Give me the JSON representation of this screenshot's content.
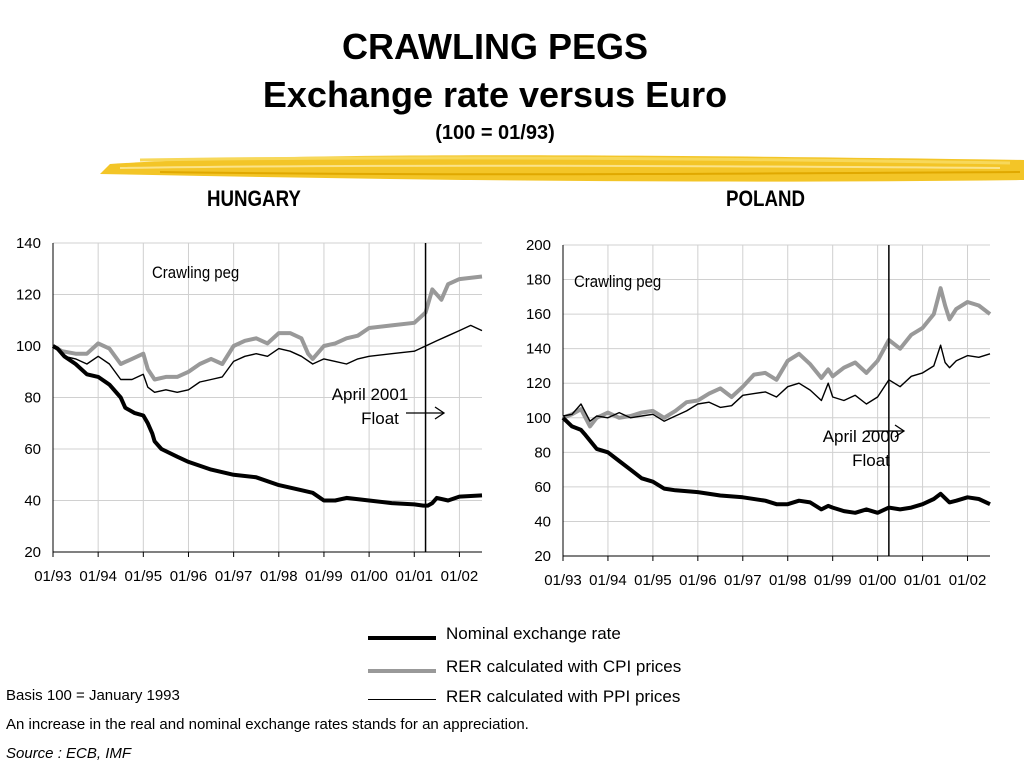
{
  "slide": {
    "title_line1": "CRAWLING PEGS",
    "title_line2": "Exchange rate versus Euro",
    "title_line3": "(100 = 01/93)",
    "basis_note": "Basis 100 = January 1993",
    "increase_note": "An increase in the real and nominal exchange rates stands for an appreciation.",
    "source_note": "Source : ECB, IMF",
    "accent_color": "#f2c21b"
  },
  "legend": [
    {
      "label": "Nominal exchange rate",
      "color": "#000000",
      "style": "thick black"
    },
    {
      "label": "RER calculated with CPI prices",
      "color": "#999999",
      "style": "thick gray"
    },
    {
      "label": "RER calculated with PPI prices",
      "color": "#000000",
      "style": "thin black"
    }
  ],
  "chart_data": [
    {
      "type": "line",
      "title": "HUNGARY",
      "x_tick_labels": [
        "01/93",
        "01/94",
        "01/95",
        "01/96",
        "01/97",
        "01/98",
        "01/99",
        "01/00",
        "01/01",
        "01/02"
      ],
      "y_ticks": [
        20,
        40,
        60,
        80,
        100,
        120,
        140
      ],
      "ylim": [
        20,
        140
      ],
      "xlim": [
        1993.0,
        2002.5
      ],
      "grid": true,
      "legend_position": "bottom-center",
      "annotations": [
        {
          "text": "Crawling peg"
        },
        {
          "text": "April 2001",
          "text2": "Float",
          "arrow": "right"
        }
      ],
      "vline": {
        "x": 2001.25
      },
      "series": [
        {
          "name": "Nominal exchange rate",
          "color": "#000000",
          "width": 4,
          "x": [
            1993.0,
            1993.1,
            1993.25,
            1993.5,
            1993.75,
            1994.0,
            1994.25,
            1994.5,
            1994.6,
            1994.8,
            1995.0,
            1995.1,
            1995.2,
            1995.25,
            1995.4,
            1995.75,
            1996.0,
            1996.5,
            1997.0,
            1997.5,
            1998.0,
            1998.5,
            1998.75,
            1999.0,
            1999.25,
            1999.5,
            2000.0,
            2000.5,
            2001.0,
            2001.2,
            2001.3,
            2001.4,
            2001.5,
            2001.75,
            2002.0,
            2002.5
          ],
          "y": [
            100,
            99,
            96,
            93,
            89,
            88,
            85,
            80,
            76,
            74,
            73,
            70,
            66,
            63,
            60,
            57,
            55,
            52,
            50,
            49,
            46,
            44,
            43,
            40,
            40,
            41,
            40,
            39,
            38.5,
            38,
            38,
            39,
            41,
            40,
            41.5,
            42
          ]
        },
        {
          "name": "RER calculated with CPI prices",
          "color": "#999999",
          "width": 4,
          "x": [
            1993.0,
            1993.2,
            1993.5,
            1993.75,
            1994.0,
            1994.25,
            1994.5,
            1994.75,
            1995.0,
            1995.1,
            1995.25,
            1995.5,
            1995.75,
            1996.0,
            1996.25,
            1996.5,
            1996.75,
            1997.0,
            1997.25,
            1997.5,
            1997.75,
            1998.0,
            1998.25,
            1998.5,
            1998.65,
            1998.75,
            1999.0,
            1999.25,
            1999.5,
            1999.75,
            2000.0,
            2000.5,
            2001.0,
            2001.25,
            2001.4,
            2001.6,
            2001.75,
            2002.0,
            2002.5
          ],
          "y": [
            100,
            98,
            97,
            97,
            101,
            99,
            93,
            95,
            97,
            91,
            87,
            88,
            88,
            90,
            93,
            95,
            93,
            100,
            102,
            103,
            101,
            105,
            105,
            103,
            97,
            95,
            100,
            101,
            103,
            104,
            107,
            108,
            109,
            113,
            122,
            118,
            124,
            126,
            127
          ]
        },
        {
          "name": "RER calculated with PPI prices",
          "color": "#000000",
          "width": 1.4,
          "x": [
            1993.0,
            1993.25,
            1993.5,
            1993.75,
            1994.0,
            1994.25,
            1994.5,
            1994.75,
            1995.0,
            1995.1,
            1995.25,
            1995.5,
            1995.75,
            1996.0,
            1996.25,
            1996.5,
            1996.75,
            1997.0,
            1997.25,
            1997.5,
            1997.75,
            1998.0,
            1998.25,
            1998.5,
            1998.75,
            1999.0,
            1999.25,
            1999.5,
            1999.75,
            2000.0,
            2000.5,
            2001.0,
            2001.25,
            2001.5,
            2001.75,
            2002.0,
            2002.25,
            2002.5
          ],
          "y": [
            100,
            96,
            95,
            93,
            96,
            93,
            87,
            87,
            89,
            84,
            82,
            83,
            82,
            83,
            86,
            87,
            88,
            94,
            96,
            97,
            96,
            99,
            98,
            96,
            93,
            95,
            94,
            93,
            95,
            96,
            97,
            98,
            100,
            102,
            104,
            106,
            108,
            106
          ]
        }
      ]
    },
    {
      "type": "line",
      "title": "POLAND",
      "x_tick_labels": [
        "01/93",
        "01/94",
        "01/95",
        "01/96",
        "01/97",
        "01/98",
        "01/99",
        "01/00",
        "01/01",
        "01/02"
      ],
      "y_ticks": [
        20,
        40,
        60,
        80,
        100,
        120,
        140,
        160,
        180,
        200
      ],
      "ylim": [
        20,
        200
      ],
      "xlim": [
        1993.0,
        2002.5
      ],
      "grid": true,
      "legend_position": "bottom-center",
      "annotations": [
        {
          "text": "Crawling peg"
        },
        {
          "text": "April 2000",
          "text2": "Float",
          "arrow": "right"
        }
      ],
      "vline": {
        "x": 2000.25
      },
      "series": [
        {
          "name": "Nominal exchange rate",
          "color": "#000000",
          "width": 4,
          "x": [
            1993.0,
            1993.2,
            1993.4,
            1993.5,
            1993.75,
            1994.0,
            1994.25,
            1994.5,
            1994.75,
            1995.0,
            1995.25,
            1995.5,
            1996.0,
            1996.5,
            1997.0,
            1997.5,
            1997.75,
            1998.0,
            1998.25,
            1998.5,
            1998.75,
            1998.9,
            1999.0,
            1999.25,
            1999.5,
            1999.75,
            2000.0,
            2000.25,
            2000.5,
            2000.75,
            2001.0,
            2001.25,
            2001.4,
            2001.6,
            2001.75,
            2002.0,
            2002.25,
            2002.5
          ],
          "y": [
            100,
            95,
            93,
            90,
            82,
            80,
            75,
            70,
            65,
            63,
            59,
            58,
            57,
            55,
            54,
            52,
            50,
            50,
            52,
            51,
            47,
            49,
            48,
            46,
            45,
            47,
            45,
            48,
            47,
            48,
            50,
            53,
            56,
            51,
            52,
            54,
            53,
            50
          ]
        },
        {
          "name": "RER calculated with CPI prices",
          "color": "#999999",
          "width": 4,
          "x": [
            1993.0,
            1993.2,
            1993.4,
            1993.6,
            1993.75,
            1994.0,
            1994.25,
            1994.5,
            1994.75,
            1995.0,
            1995.25,
            1995.5,
            1995.75,
            1996.0,
            1996.25,
            1996.5,
            1996.75,
            1997.0,
            1997.25,
            1997.5,
            1997.75,
            1998.0,
            1998.25,
            1998.5,
            1998.75,
            1998.9,
            1999.0,
            1999.25,
            1999.5,
            1999.75,
            2000.0,
            2000.25,
            2000.5,
            2000.75,
            2001.0,
            2001.25,
            2001.4,
            2001.5,
            2001.6,
            2001.75,
            2002.0,
            2002.25,
            2002.5
          ],
          "y": [
            100,
            102,
            105,
            95,
            100,
            103,
            100,
            101,
            103,
            104,
            100,
            104,
            109,
            110,
            114,
            117,
            112,
            118,
            125,
            126,
            122,
            133,
            137,
            131,
            123,
            128,
            124,
            129,
            132,
            126,
            133,
            145,
            140,
            148,
            152,
            160,
            175,
            165,
            157,
            163,
            167,
            165,
            160
          ]
        },
        {
          "name": "RER calculated with PPI prices",
          "color": "#000000",
          "width": 1.4,
          "x": [
            1993.0,
            1993.2,
            1993.4,
            1993.6,
            1993.75,
            1994.0,
            1994.25,
            1994.5,
            1994.75,
            1995.0,
            1995.25,
            1995.5,
            1995.75,
            1996.0,
            1996.25,
            1996.5,
            1996.75,
            1997.0,
            1997.25,
            1997.5,
            1997.75,
            1998.0,
            1998.25,
            1998.5,
            1998.75,
            1998.9,
            1999.0,
            1999.25,
            1999.5,
            1999.75,
            2000.0,
            2000.25,
            2000.5,
            2000.75,
            2001.0,
            2001.25,
            2001.4,
            2001.5,
            2001.6,
            2001.75,
            2002.0,
            2002.25,
            2002.5
          ],
          "y": [
            101,
            102,
            108,
            98,
            101,
            100,
            103,
            100,
            101,
            102,
            98,
            101,
            104,
            108,
            109,
            106,
            107,
            113,
            114,
            115,
            112,
            118,
            120,
            116,
            110,
            120,
            112,
            110,
            113,
            108,
            112,
            122,
            118,
            124,
            126,
            130,
            142,
            132,
            129,
            133,
            136,
            135,
            137
          ]
        }
      ]
    }
  ]
}
